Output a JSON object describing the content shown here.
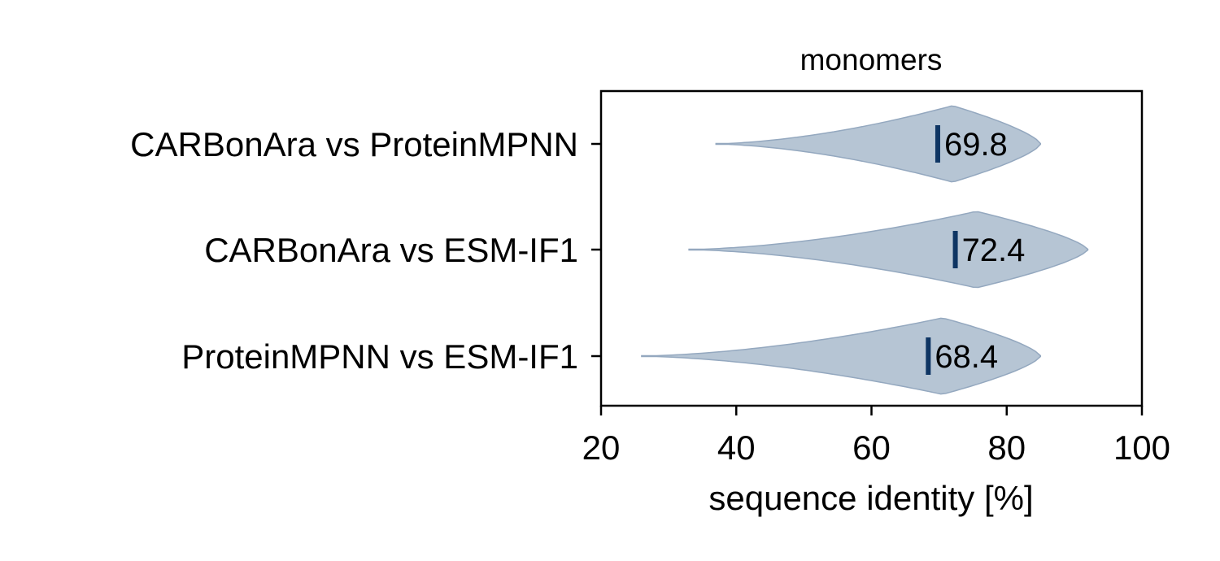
{
  "chart_data": {
    "type": "violin",
    "title": "monomers",
    "xlabel": "sequence identity [%]",
    "ylabel": "",
    "xlim": [
      20,
      100
    ],
    "xticks": [
      "20",
      "40",
      "60",
      "80",
      "100"
    ],
    "grid": false,
    "legend": "none",
    "categories": [
      "CARBonAra vs ProteinMPNN",
      "CARBonAra vs ESM-IF1",
      "ProteinMPNN vs ESM-IF1"
    ],
    "medians": [
      69.8,
      72.4,
      68.4
    ],
    "median_labels": [
      "69.8",
      "72.4",
      "68.4"
    ],
    "ranges": [
      [
        37,
        85
      ],
      [
        33,
        92
      ],
      [
        26,
        85
      ]
    ],
    "modes": [
      72,
      75.5,
      70.5
    ],
    "colors": {
      "fill": "#b6c5d4",
      "edge": "#94a8bf",
      "median": "#0e3563"
    }
  }
}
